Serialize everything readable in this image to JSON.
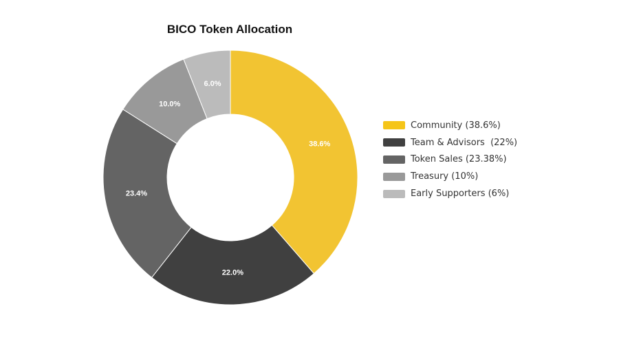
{
  "chart_data": {
    "type": "pie",
    "title": "BICO Token Allocation",
    "slices": [
      {
        "slice_label": "38.6%",
        "legend_label": "Community (38.6%)",
        "value": 38.6,
        "color": "#F2C432"
      },
      {
        "slice_label": "22.0%",
        "legend_label": "Team & Advisors  (22%)",
        "value": 22.0,
        "color": "#404040"
      },
      {
        "slice_label": "23.4%",
        "legend_label": "Token Sales (23.38%)",
        "value": 23.38,
        "color": "#646464"
      },
      {
        "slice_label": "10.0%",
        "legend_label": "Treasury (10%)",
        "value": 10.0,
        "color": "#999999"
      },
      {
        "slice_label": "6.0%",
        "legend_label": "Early Supporters (6%)",
        "value": 6.0,
        "color": "#BBBBBB"
      }
    ],
    "legend_position": "right",
    "legend_swatch_color_community": "#F5C518"
  }
}
